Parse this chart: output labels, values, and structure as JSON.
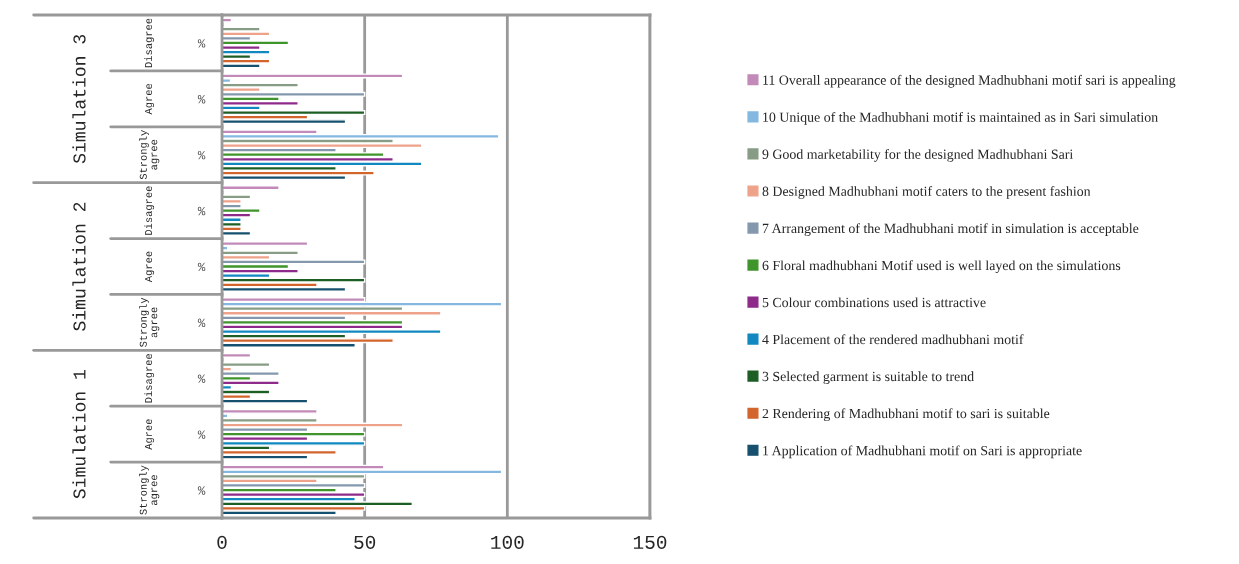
{
  "chart_data": {
    "type": "bar",
    "orientation": "horizontal",
    "categories": [
      "%",
      "%",
      "%",
      "%",
      "%",
      "%",
      "%",
      "%",
      "%"
    ],
    "annotations": [
      "Simulation 3",
      "Simulation 2",
      "Simulation 1",
      "Disagree",
      "Agree",
      "Strongly agree",
      "Disagree",
      "Agree",
      "Strongly agree",
      "Disagree",
      "Agree",
      "Strongly agree"
    ],
    "xlim": [
      0,
      150
    ],
    "xticks": [
      0,
      50,
      100,
      150
    ],
    "grid": "x",
    "legend": "right",
    "series": [
      {
        "name": "1 Application of Madhubhani motif on Sari is appropriate",
        "color": "#16506e",
        "values": [
          13.3,
          43.3,
          43.3,
          10,
          43.3,
          46.7,
          30,
          30,
          40
        ]
      },
      {
        "name": "2 Rendering of Madhubhani motif to sari is suitable",
        "color": "#d2642c",
        "values": [
          16.7,
          30,
          53.3,
          6.7,
          33.3,
          60,
          10,
          40,
          50
        ]
      },
      {
        "name": "3 Selected garment is suitable to trend",
        "color": "#1d5e25",
        "values": [
          10,
          50,
          40,
          6.7,
          50,
          43.3,
          16.7,
          16.7,
          66.7
        ]
      },
      {
        "name": "4 Placement of the rendered madhubhani motif",
        "color": "#1188c0",
        "values": [
          16.7,
          13.3,
          70,
          6.7,
          16.7,
          76.7,
          3.3,
          50,
          46.7
        ]
      },
      {
        "name": "5 Colour combinations used is attractive",
        "color": "#8e2a8a",
        "values": [
          13.3,
          26.7,
          60,
          10,
          26.7,
          63.3,
          20,
          30,
          50
        ]
      },
      {
        "name": "6 Floral madhubhani Motif used is well layed on the simulations",
        "color": "#3f942c",
        "values": [
          23.3,
          20,
          56.7,
          13.3,
          23.3,
          63.3,
          10,
          50,
          40
        ]
      },
      {
        "name": "7 Arrangement of the Madhubhani motif in simulation is acceptable",
        "color": "#8498ad",
        "values": [
          10,
          50,
          40,
          6.7,
          50,
          43.3,
          20,
          30,
          50
        ]
      },
      {
        "name": "8 Designed Madhubhani motif caters to the present fashion",
        "color": "#eea28a",
        "values": [
          16.7,
          13.3,
          70,
          6.7,
          16.7,
          76.7,
          3.3,
          63.3,
          33.3
        ]
      },
      {
        "name": "9 Good marketability for the designed Madhubhani Sari",
        "color": "#879c85",
        "values": [
          13.3,
          26.7,
          60,
          10,
          26.7,
          63.3,
          16.7,
          33.3,
          50
        ]
      },
      {
        "name": "10 Unique of the Madhubhani motif is maintained as in Sari simulation",
        "color": "#84b8e0",
        "values": [
          null,
          3,
          97,
          null,
          2,
          98,
          null,
          2,
          98
        ]
      },
      {
        "name": "11 Overall appearance of the designed Madhubhani motif sari is appealing",
        "color": "#c28ab8",
        "values": [
          3.3,
          63.3,
          33.3,
          20,
          30,
          50,
          10,
          33.3,
          56.7
        ]
      }
    ]
  }
}
